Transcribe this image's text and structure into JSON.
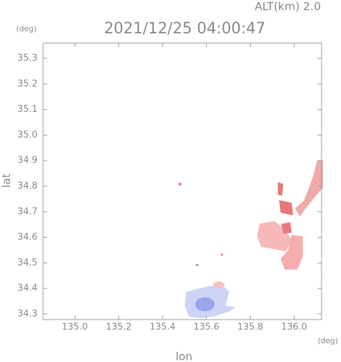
{
  "chart_data": {
    "type": "map",
    "title": "2021/12/25 04:00:47",
    "subtitle": "ALT(km) 2.0",
    "x_label": "lon",
    "y_label": "lat",
    "x_unit": "(deg)",
    "y_unit": "(deg)",
    "xlim": [
      134.855,
      136.125
    ],
    "ylim": [
      34.278,
      35.36
    ],
    "xticks": [
      {
        "value": 135,
        "label": "135.0"
      },
      135.2,
      135.4,
      135.6,
      135.8,
      {
        "value": 136,
        "label": "136.0"
      }
    ],
    "yticks": [
      34.3,
      34.4,
      34.5,
      34.6,
      34.7,
      34.8,
      34.9,
      {
        "value": 35,
        "label": "35.0"
      },
      35.1,
      35.2,
      35.3
    ]
  }
}
